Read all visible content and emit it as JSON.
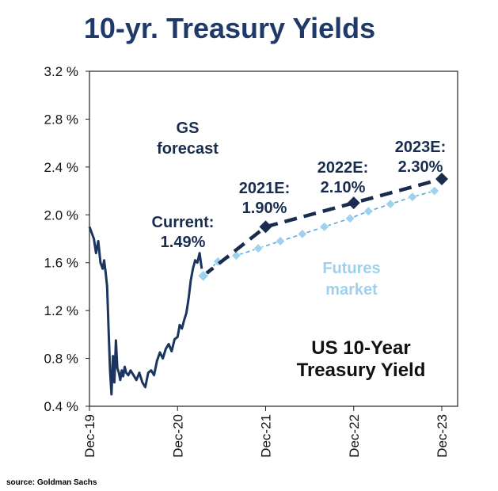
{
  "chart_data": {
    "type": "line",
    "title": "10-yr. Treasury Yields",
    "inner_title": "US 10-Year Treasury Yield",
    "source": "source: Goldman Sachs",
    "y_ticks": [
      "3.2 %",
      "2.8 %",
      "2.4 %",
      "2.0 %",
      "1.6 %",
      "1.2 %",
      "0.8 %",
      "0.4 %"
    ],
    "y_tick_values": [
      3.2,
      2.8,
      2.4,
      2.0,
      1.6,
      1.2,
      0.8,
      0.4
    ],
    "ylim": [
      0.4,
      3.2
    ],
    "x_ticks": [
      "Dec-19",
      "Dec-20",
      "Dec-21",
      "Dec-22",
      "Dec-23"
    ],
    "x_tick_values": [
      0,
      12,
      24,
      36,
      48
    ],
    "xlim": [
      0,
      48
    ],
    "colors": {
      "title": "#1f3a68",
      "history": "#1b355f",
      "gs": "#1a2c4e",
      "futures": "#9fd1ee",
      "futures_line": "#5aa9d6",
      "futures_label": "#9fd1ee",
      "axis": "#222222"
    },
    "annotations": {
      "gs_label": [
        "GS",
        "forecast"
      ],
      "futures_label": [
        "Futures",
        "market"
      ],
      "inner_title_lines": [
        "US 10-Year",
        "Treasury Yield"
      ],
      "current": [
        "Current:",
        "1.49%"
      ],
      "e2021": [
        "2021E:",
        "1.90%"
      ],
      "e2022": [
        "2022E:",
        "2.10%"
      ],
      "e2023": [
        "2023E:",
        "2.30%"
      ]
    },
    "series": [
      {
        "name": "US 10-Year Treasury Yield (history)",
        "x": [
          0,
          0.3,
          0.6,
          0.9,
          1.2,
          1.5,
          1.8,
          2.0,
          2.2,
          2.4,
          2.6,
          2.8,
          3.0,
          3.2,
          3.4,
          3.6,
          3.8,
          4.0,
          4.2,
          4.4,
          4.6,
          4.8,
          5.0,
          5.3,
          5.6,
          6.0,
          6.4,
          6.8,
          7.2,
          7.6,
          8.0,
          8.4,
          8.8,
          9.2,
          9.6,
          10.0,
          10.4,
          10.8,
          11.2,
          11.6,
          12.0,
          12.3,
          12.6,
          12.9,
          13.2,
          13.5,
          13.8,
          14.1,
          14.4,
          14.7,
          15.0,
          15.3
        ],
        "values": [
          1.9,
          1.85,
          1.8,
          1.68,
          1.78,
          1.6,
          1.55,
          1.62,
          1.52,
          1.4,
          1.05,
          0.7,
          0.5,
          0.82,
          0.6,
          0.95,
          0.72,
          0.68,
          0.62,
          0.7,
          0.65,
          0.73,
          0.68,
          0.66,
          0.7,
          0.66,
          0.62,
          0.68,
          0.6,
          0.56,
          0.68,
          0.7,
          0.66,
          0.78,
          0.85,
          0.8,
          0.88,
          0.92,
          0.86,
          0.96,
          0.98,
          1.08,
          1.05,
          1.12,
          1.18,
          1.3,
          1.45,
          1.55,
          1.62,
          1.6,
          1.68,
          1.55
        ]
      },
      {
        "name": "GS forecast",
        "x": [
          15.5,
          24,
          36,
          48
        ],
        "values": [
          1.49,
          1.9,
          2.1,
          2.3
        ]
      },
      {
        "name": "Futures market",
        "x": [
          15.5,
          17.5,
          20,
          23,
          26,
          29,
          32,
          35.5,
          38,
          41,
          44,
          47
        ],
        "values": [
          1.49,
          1.61,
          1.66,
          1.72,
          1.78,
          1.84,
          1.9,
          1.97,
          2.03,
          2.09,
          2.15,
          2.2
        ]
      }
    ]
  }
}
